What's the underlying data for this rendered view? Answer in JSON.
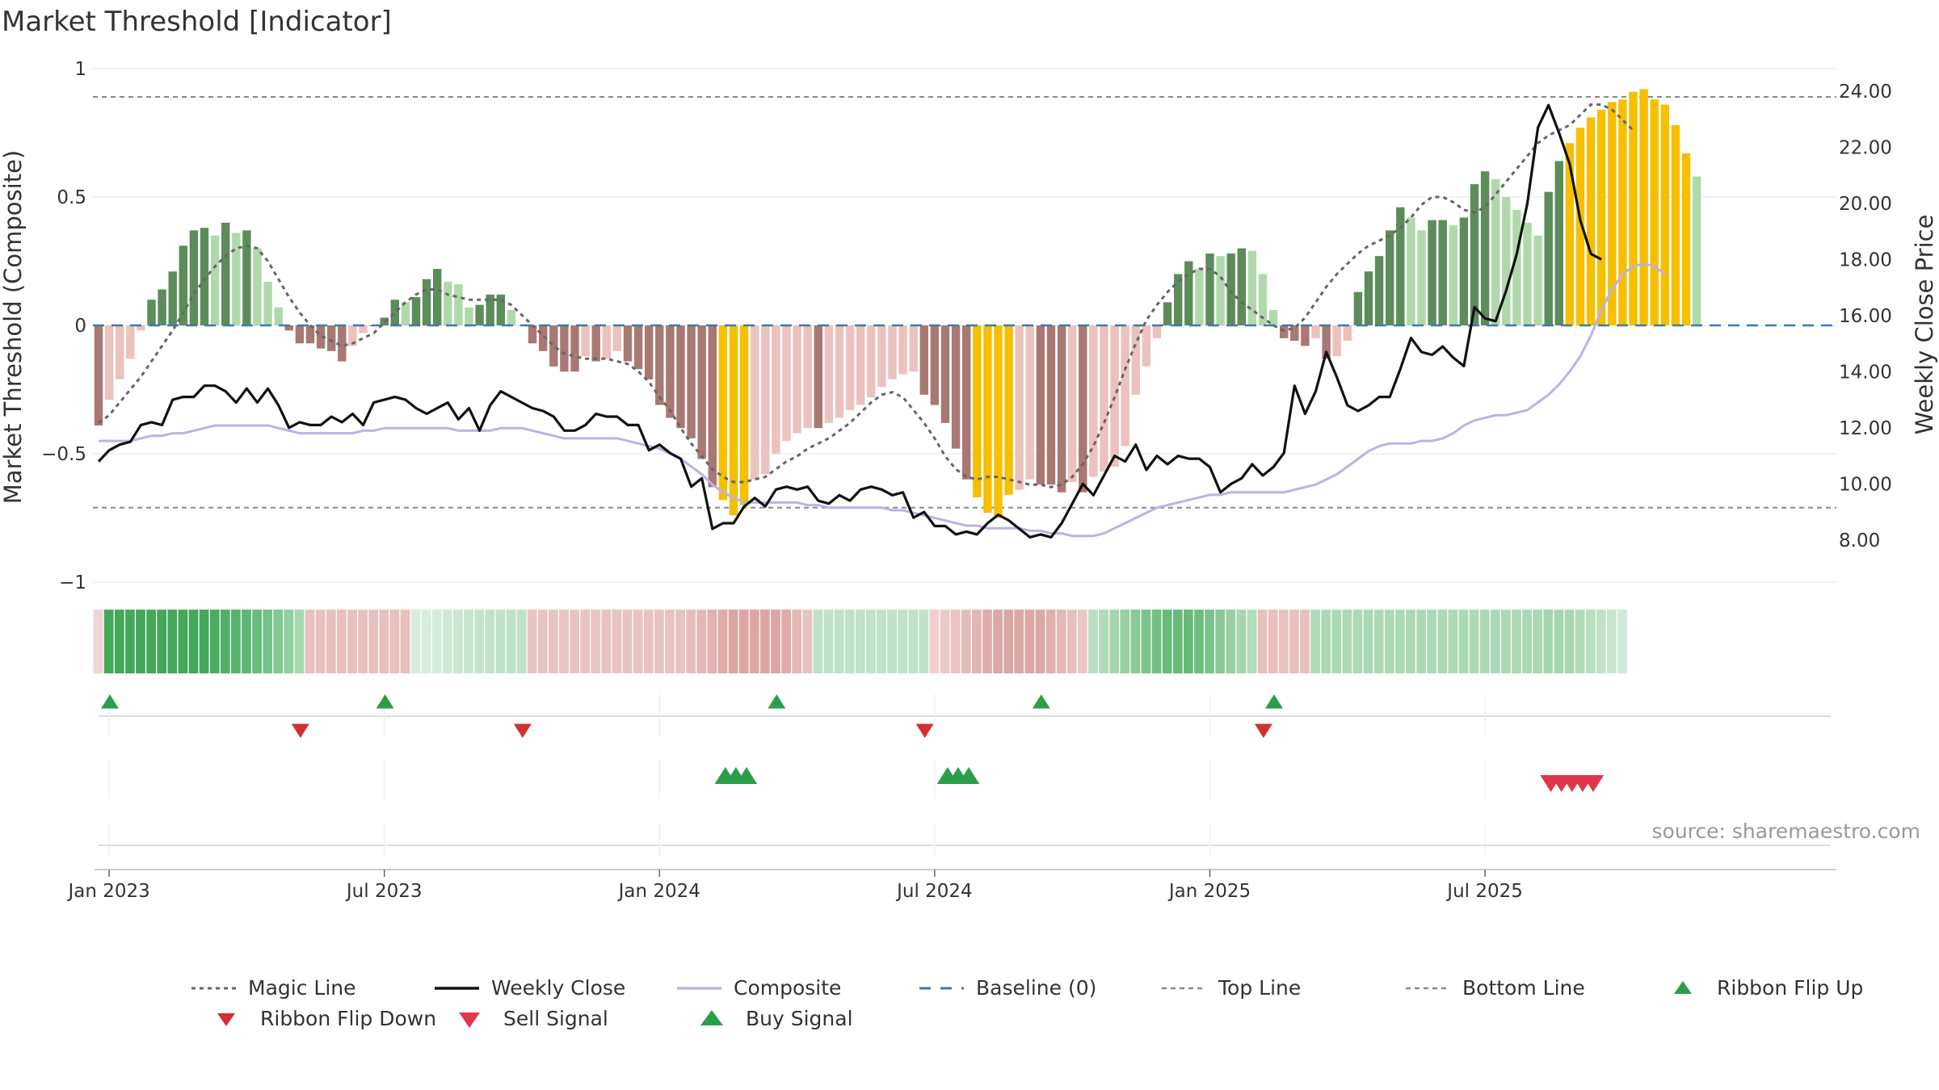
{
  "chart_data": {
    "type": "bar",
    "title": "Market Threshold [Indicator]",
    "ylabel_left": "Market Threshold (Composite)",
    "ylabel_right": "Weekly Close Price",
    "ylim_left": [
      -1,
      1
    ],
    "ylim_right": [
      6.5,
      24.8
    ],
    "left_ticks": [
      {
        "v": 1,
        "label": "1"
      },
      {
        "v": 0.5,
        "label": "0.5"
      },
      {
        "v": 0,
        "label": "0"
      },
      {
        "v": -0.5,
        "label": "−0.5"
      },
      {
        "v": -1,
        "label": "−1"
      }
    ],
    "right_ticks": [
      {
        "v": 24,
        "label": "24.00"
      },
      {
        "v": 22,
        "label": "22.00"
      },
      {
        "v": 20,
        "label": "20.00"
      },
      {
        "v": 18,
        "label": "18.00"
      },
      {
        "v": 16,
        "label": "16.00"
      },
      {
        "v": 14,
        "label": "14.00"
      },
      {
        "v": 12,
        "label": "12.00"
      },
      {
        "v": 10,
        "label": "10.00"
      },
      {
        "v": 8,
        "label": "8.00"
      }
    ],
    "x_ticks": [
      {
        "week": 1,
        "label": "Jan 2023"
      },
      {
        "week": 27,
        "label": "Jul 2023"
      },
      {
        "week": 53,
        "label": "Jan 2024"
      },
      {
        "week": 79,
        "label": "Jul 2024"
      },
      {
        "week": 105,
        "label": "Jan 2025"
      },
      {
        "week": 131,
        "label": "Jul 2025"
      }
    ],
    "top_line": 0.89,
    "bottom_line": -0.71,
    "baseline": 0,
    "composite_bars": [
      -0.39,
      -0.29,
      -0.21,
      -0.13,
      -0.02,
      0.1,
      0.14,
      0.21,
      0.31,
      0.37,
      0.38,
      0.35,
      0.4,
      0.36,
      0.37,
      0.3,
      0.17,
      0.07,
      -0.02,
      -0.07,
      -0.07,
      -0.09,
      -0.1,
      -0.14,
      -0.08,
      -0.03,
      0.0,
      0.03,
      0.1,
      0.09,
      0.11,
      0.18,
      0.22,
      0.17,
      0.16,
      0.07,
      0.08,
      0.12,
      0.12,
      0.06,
      0.0,
      -0.07,
      -0.1,
      -0.16,
      -0.18,
      -0.18,
      -0.12,
      -0.14,
      -0.13,
      -0.1,
      -0.14,
      -0.17,
      -0.21,
      -0.31,
      -0.36,
      -0.4,
      -0.44,
      -0.52,
      -0.63,
      -0.68,
      -0.74,
      -0.7,
      -0.6,
      -0.58,
      -0.5,
      -0.45,
      -0.42,
      -0.4,
      -0.4,
      -0.38,
      -0.36,
      -0.33,
      -0.31,
      -0.28,
      -0.24,
      -0.21,
      -0.19,
      -0.18,
      -0.27,
      -0.31,
      -0.38,
      -0.48,
      -0.6,
      -0.67,
      -0.73,
      -0.75,
      -0.66,
      -0.64,
      -0.6,
      -0.62,
      -0.62,
      -0.65,
      -0.61,
      -0.65,
      -0.59,
      -0.57,
      -0.55,
      -0.47,
      -0.27,
      -0.16,
      -0.05,
      0.09,
      0.2,
      0.25,
      0.22,
      0.28,
      0.27,
      0.28,
      0.3,
      0.29,
      0.2,
      0.06,
      -0.05,
      -0.06,
      -0.08,
      -0.05,
      -0.13,
      -0.12,
      -0.06,
      0.13,
      0.21,
      0.27,
      0.37,
      0.46,
      0.42,
      0.37,
      0.41,
      0.41,
      0.39,
      0.42,
      0.55,
      0.6,
      0.57,
      0.5,
      0.45,
      0.4,
      0.35,
      0.52,
      0.64,
      0.71,
      0.77,
      0.81,
      0.84,
      0.87,
      0.88,
      0.91,
      0.92,
      0.88,
      0.86,
      0.78,
      0.67,
      0.58
    ],
    "composite_line": [
      -0.45,
      -0.45,
      -0.45,
      -0.45,
      -0.44,
      -0.43,
      -0.43,
      -0.42,
      -0.42,
      -0.41,
      -0.4,
      -0.39,
      -0.39,
      -0.39,
      -0.39,
      -0.39,
      -0.39,
      -0.4,
      -0.41,
      -0.42,
      -0.42,
      -0.42,
      -0.42,
      -0.42,
      -0.42,
      -0.41,
      -0.41,
      -0.4,
      -0.4,
      -0.4,
      -0.4,
      -0.4,
      -0.4,
      -0.4,
      -0.41,
      -0.41,
      -0.41,
      -0.41,
      -0.4,
      -0.4,
      -0.4,
      -0.41,
      -0.42,
      -0.43,
      -0.44,
      -0.44,
      -0.44,
      -0.44,
      -0.44,
      -0.44,
      -0.45,
      -0.46,
      -0.47,
      -0.48,
      -0.5,
      -0.52,
      -0.55,
      -0.58,
      -0.62,
      -0.65,
      -0.67,
      -0.69,
      -0.69,
      -0.69,
      -0.69,
      -0.69,
      -0.69,
      -0.7,
      -0.7,
      -0.71,
      -0.71,
      -0.71,
      -0.71,
      -0.71,
      -0.71,
      -0.72,
      -0.72,
      -0.73,
      -0.74,
      -0.75,
      -0.76,
      -0.77,
      -0.78,
      -0.78,
      -0.79,
      -0.79,
      -0.79,
      -0.79,
      -0.8,
      -0.8,
      -0.81,
      -0.81,
      -0.82,
      -0.82,
      -0.82,
      -0.81,
      -0.79,
      -0.77,
      -0.75,
      -0.73,
      -0.71,
      -0.7,
      -0.69,
      -0.68,
      -0.67,
      -0.66,
      -0.66,
      -0.65,
      -0.65,
      -0.65,
      -0.65,
      -0.65,
      -0.65,
      -0.64,
      -0.63,
      -0.62,
      -0.6,
      -0.58,
      -0.55,
      -0.52,
      -0.49,
      -0.47,
      -0.46,
      -0.46,
      -0.46,
      -0.45,
      -0.45,
      -0.44,
      -0.42,
      -0.39,
      -0.37,
      -0.36,
      -0.35,
      -0.35,
      -0.34,
      -0.33,
      -0.3,
      -0.27,
      -0.23,
      -0.18,
      -0.12,
      -0.04,
      0.06,
      0.14,
      0.2,
      0.23,
      0.24,
      0.23,
      0.2
    ],
    "magic_line": [
      -0.38,
      -0.35,
      -0.3,
      -0.25,
      -0.2,
      -0.14,
      -0.08,
      -0.02,
      0.05,
      0.12,
      0.18,
      0.23,
      0.27,
      0.3,
      0.31,
      0.3,
      0.25,
      0.18,
      0.11,
      0.05,
      0.0,
      -0.04,
      -0.06,
      -0.08,
      -0.07,
      -0.05,
      -0.03,
      0.01,
      0.05,
      0.09,
      0.12,
      0.14,
      0.14,
      0.12,
      0.11,
      0.1,
      0.1,
      0.1,
      0.1,
      0.08,
      0.04,
      0.0,
      -0.04,
      -0.08,
      -0.11,
      -0.12,
      -0.13,
      -0.13,
      -0.13,
      -0.14,
      -0.15,
      -0.18,
      -0.22,
      -0.28,
      -0.33,
      -0.4,
      -0.46,
      -0.51,
      -0.56,
      -0.59,
      -0.61,
      -0.61,
      -0.6,
      -0.59,
      -0.56,
      -0.53,
      -0.51,
      -0.48,
      -0.46,
      -0.44,
      -0.41,
      -0.38,
      -0.34,
      -0.3,
      -0.27,
      -0.26,
      -0.28,
      -0.33,
      -0.38,
      -0.44,
      -0.51,
      -0.56,
      -0.59,
      -0.6,
      -0.59,
      -0.59,
      -0.6,
      -0.61,
      -0.62,
      -0.62,
      -0.63,
      -0.62,
      -0.59,
      -0.54,
      -0.47,
      -0.38,
      -0.28,
      -0.17,
      -0.07,
      0.02,
      0.08,
      0.13,
      0.17,
      0.2,
      0.22,
      0.22,
      0.19,
      0.13,
      0.09,
      0.06,
      0.03,
      0.0,
      -0.02,
      -0.01,
      0.03,
      0.09,
      0.15,
      0.2,
      0.24,
      0.28,
      0.31,
      0.33,
      0.35,
      0.38,
      0.42,
      0.47,
      0.5,
      0.5,
      0.48,
      0.45,
      0.44,
      0.46,
      0.51,
      0.56,
      0.61,
      0.66,
      0.71,
      0.74,
      0.76,
      0.78,
      0.82,
      0.86,
      0.86,
      0.84,
      0.8,
      0.76
    ],
    "weekly_close": [
      10.8,
      11.2,
      11.4,
      11.5,
      12.1,
      12.2,
      12.1,
      13.0,
      13.1,
      13.1,
      13.5,
      13.5,
      13.3,
      12.9,
      13.4,
      12.9,
      13.4,
      12.8,
      12.0,
      12.2,
      12.1,
      12.1,
      12.4,
      12.2,
      12.5,
      12.1,
      12.9,
      13.0,
      13.1,
      13.0,
      12.7,
      12.5,
      12.7,
      12.9,
      12.3,
      12.7,
      11.9,
      12.8,
      13.3,
      13.1,
      12.9,
      12.7,
      12.6,
      12.4,
      11.9,
      11.9,
      12.1,
      12.5,
      12.4,
      12.4,
      12.1,
      12.1,
      11.2,
      11.4,
      11.1,
      10.9,
      9.9,
      10.2,
      8.4,
      8.6,
      8.6,
      9.2,
      9.5,
      9.2,
      9.8,
      9.9,
      9.8,
      9.9,
      9.4,
      9.3,
      9.6,
      9.4,
      9.8,
      9.9,
      9.8,
      9.6,
      9.7,
      8.8,
      9.0,
      8.5,
      8.5,
      8.2,
      8.3,
      8.2,
      8.6,
      8.9,
      8.7,
      8.4,
      8.1,
      8.2,
      8.1,
      8.6,
      9.3,
      10.0,
      9.6,
      10.3,
      11.0,
      10.8,
      11.4,
      10.5,
      11.0,
      10.7,
      11.0,
      10.9,
      10.9,
      10.6,
      9.7,
      10.0,
      10.2,
      10.7,
      10.3,
      10.6,
      11.1,
      13.5,
      12.5,
      13.3,
      14.7,
      13.8,
      12.8,
      12.6,
      12.8,
      13.1,
      13.1,
      14.1,
      15.2,
      14.7,
      14.6,
      14.9,
      14.5,
      14.2,
      16.3,
      15.9,
      15.8,
      16.9,
      18.2,
      20.0,
      22.7,
      23.5,
      22.5,
      21.4,
      19.4,
      18.2,
      18.0
    ],
    "ribbon_colors": [
      "#f2d4d4",
      "#43a85a",
      "#43a85a",
      "#43a85a",
      "#43a85a",
      "#43a85a",
      "#43a85a",
      "#43a85a",
      "#43a85a",
      "#43a85a",
      "#43a85a",
      "#4aac60",
      "#50b066",
      "#55b36a",
      "#5db874",
      "#67bd7c",
      "#73c386",
      "#80c991",
      "#90d09e",
      "#a4d9b0",
      "#e8c0be",
      "#e8c0be",
      "#e8c0be",
      "#e8c0be",
      "#e8c0be",
      "#e8c0be",
      "#e8c0be",
      "#e8c0be",
      "#e8c0be",
      "#e8c0be",
      "#d8eedd",
      "#d8eedd",
      "#d3ebd9",
      "#cfe9d5",
      "#cbe7d2",
      "#c8e6cf",
      "#c4e4cb",
      "#c2e3c9",
      "#c0e2c8",
      "#c0e2c8",
      "#c0e2c8",
      "#e7c4c2",
      "#e7c4c2",
      "#e7c4c2",
      "#e7c4c2",
      "#e7c4c2",
      "#e7c4c2",
      "#e7c4c2",
      "#e7c4c2",
      "#e7c4c2",
      "#e7c4c2",
      "#e7c4c2",
      "#e7c4c2",
      "#e7c4c2",
      "#e7c4c2",
      "#e7c4c2",
      "#e5beba",
      "#e3b8b4",
      "#e1b2ae",
      "#dfaca8",
      "#dda6a2",
      "#dda6a2",
      "#dda6a2",
      "#dda6a2",
      "#dda6a2",
      "#dfacaa",
      "#e3b8b6",
      "#e7c4c2",
      "#c0e2c8",
      "#c0e2c8",
      "#c0e2c8",
      "#c0e2c8",
      "#c0e2c8",
      "#c0e2c8",
      "#c0e2c8",
      "#c0e2c8",
      "#c0e2c8",
      "#c0e2c8",
      "#c0e2c8",
      "#f0d0cf",
      "#eccac8",
      "#e9c3c1",
      "#e5bcba",
      "#e2b5b3",
      "#dfaeac",
      "#dca8a6",
      "#dca8a6",
      "#dca8a6",
      "#dca8a6",
      "#dca8a6",
      "#dfb0ae",
      "#e3b8b6",
      "#e7c0be",
      "#ebc8c6",
      "#b8dfc1",
      "#b0dbb9",
      "#a5d6af",
      "#98d0a3",
      "#8bca98",
      "#7ec48c",
      "#72bf82",
      "#68ba79",
      "#68ba79",
      "#68ba79",
      "#6fbe80",
      "#7cc38b",
      "#8ac997",
      "#98cfa3",
      "#a6d5ae",
      "#b4dbba",
      "#e8c0be",
      "#e8c0be",
      "#e8c0be",
      "#e8c0be",
      "#e8c0be",
      "#b0dbb8",
      "#acd9b5",
      "#acd9b5",
      "#acd9b5",
      "#acd9b5",
      "#acd9b5",
      "#acd9b5",
      "#acd9b5",
      "#acd9b5",
      "#acd9b5",
      "#acd9b5",
      "#acd9b5",
      "#acd9b5",
      "#acd9b5",
      "#acd9b5",
      "#acd9b5",
      "#acd9b5",
      "#acd9b5",
      "#acd9b5",
      "#acd9b5",
      "#acd9b5",
      "#a8d7b2",
      "#a4d6ae",
      "#a4d6ae",
      "#a8d7b2",
      "#b0dbb8",
      "#b8dfbf",
      "#c0e2c6",
      "#c8e6cd",
      "#d0eada"
    ],
    "ribbon_flip_up_weeks": [
      0,
      26,
      63,
      88,
      110
    ],
    "ribbon_flip_down_weeks": [
      18,
      39,
      77,
      109
    ],
    "buy_signal_weeks": [
      58,
      59,
      60,
      79,
      80,
      81
    ],
    "sell_signal_weeks": [
      136,
      137,
      138,
      139,
      140
    ],
    "source_text": "source: sharemaestro.com",
    "colors": {
      "bar_pos_strong": "#5c8c5a",
      "bar_pos_weak": "#b0d9ab",
      "bar_neg_strong": "#a87872",
      "bar_neg_weak": "#ebc2bd",
      "bar_extreme": "#f7bf00",
      "magic_line": "#666666",
      "weekly_close": "#111111",
      "composite": "#bcb2e4",
      "baseline": "#3e7aa8",
      "top_bottom": "#888888",
      "flip_up": "#2b9e4a",
      "flip_down": "#d03030",
      "sell": "#e0384a",
      "buy": "#2b9e4a"
    },
    "legend": [
      {
        "key": "magic",
        "label": "Magic Line"
      },
      {
        "key": "close",
        "label": "Weekly Close"
      },
      {
        "key": "composite",
        "label": "Composite"
      },
      {
        "key": "baseline",
        "label": "Baseline (0)"
      },
      {
        "key": "top",
        "label": "Top Line"
      },
      {
        "key": "bottom",
        "label": "Bottom Line"
      },
      {
        "key": "flipup",
        "label": "Ribbon Flip Up"
      },
      {
        "key": "flipdown",
        "label": "Ribbon Flip Down"
      },
      {
        "key": "sell",
        "label": "Sell Signal"
      },
      {
        "key": "buy",
        "label": "Buy Signal"
      }
    ]
  }
}
